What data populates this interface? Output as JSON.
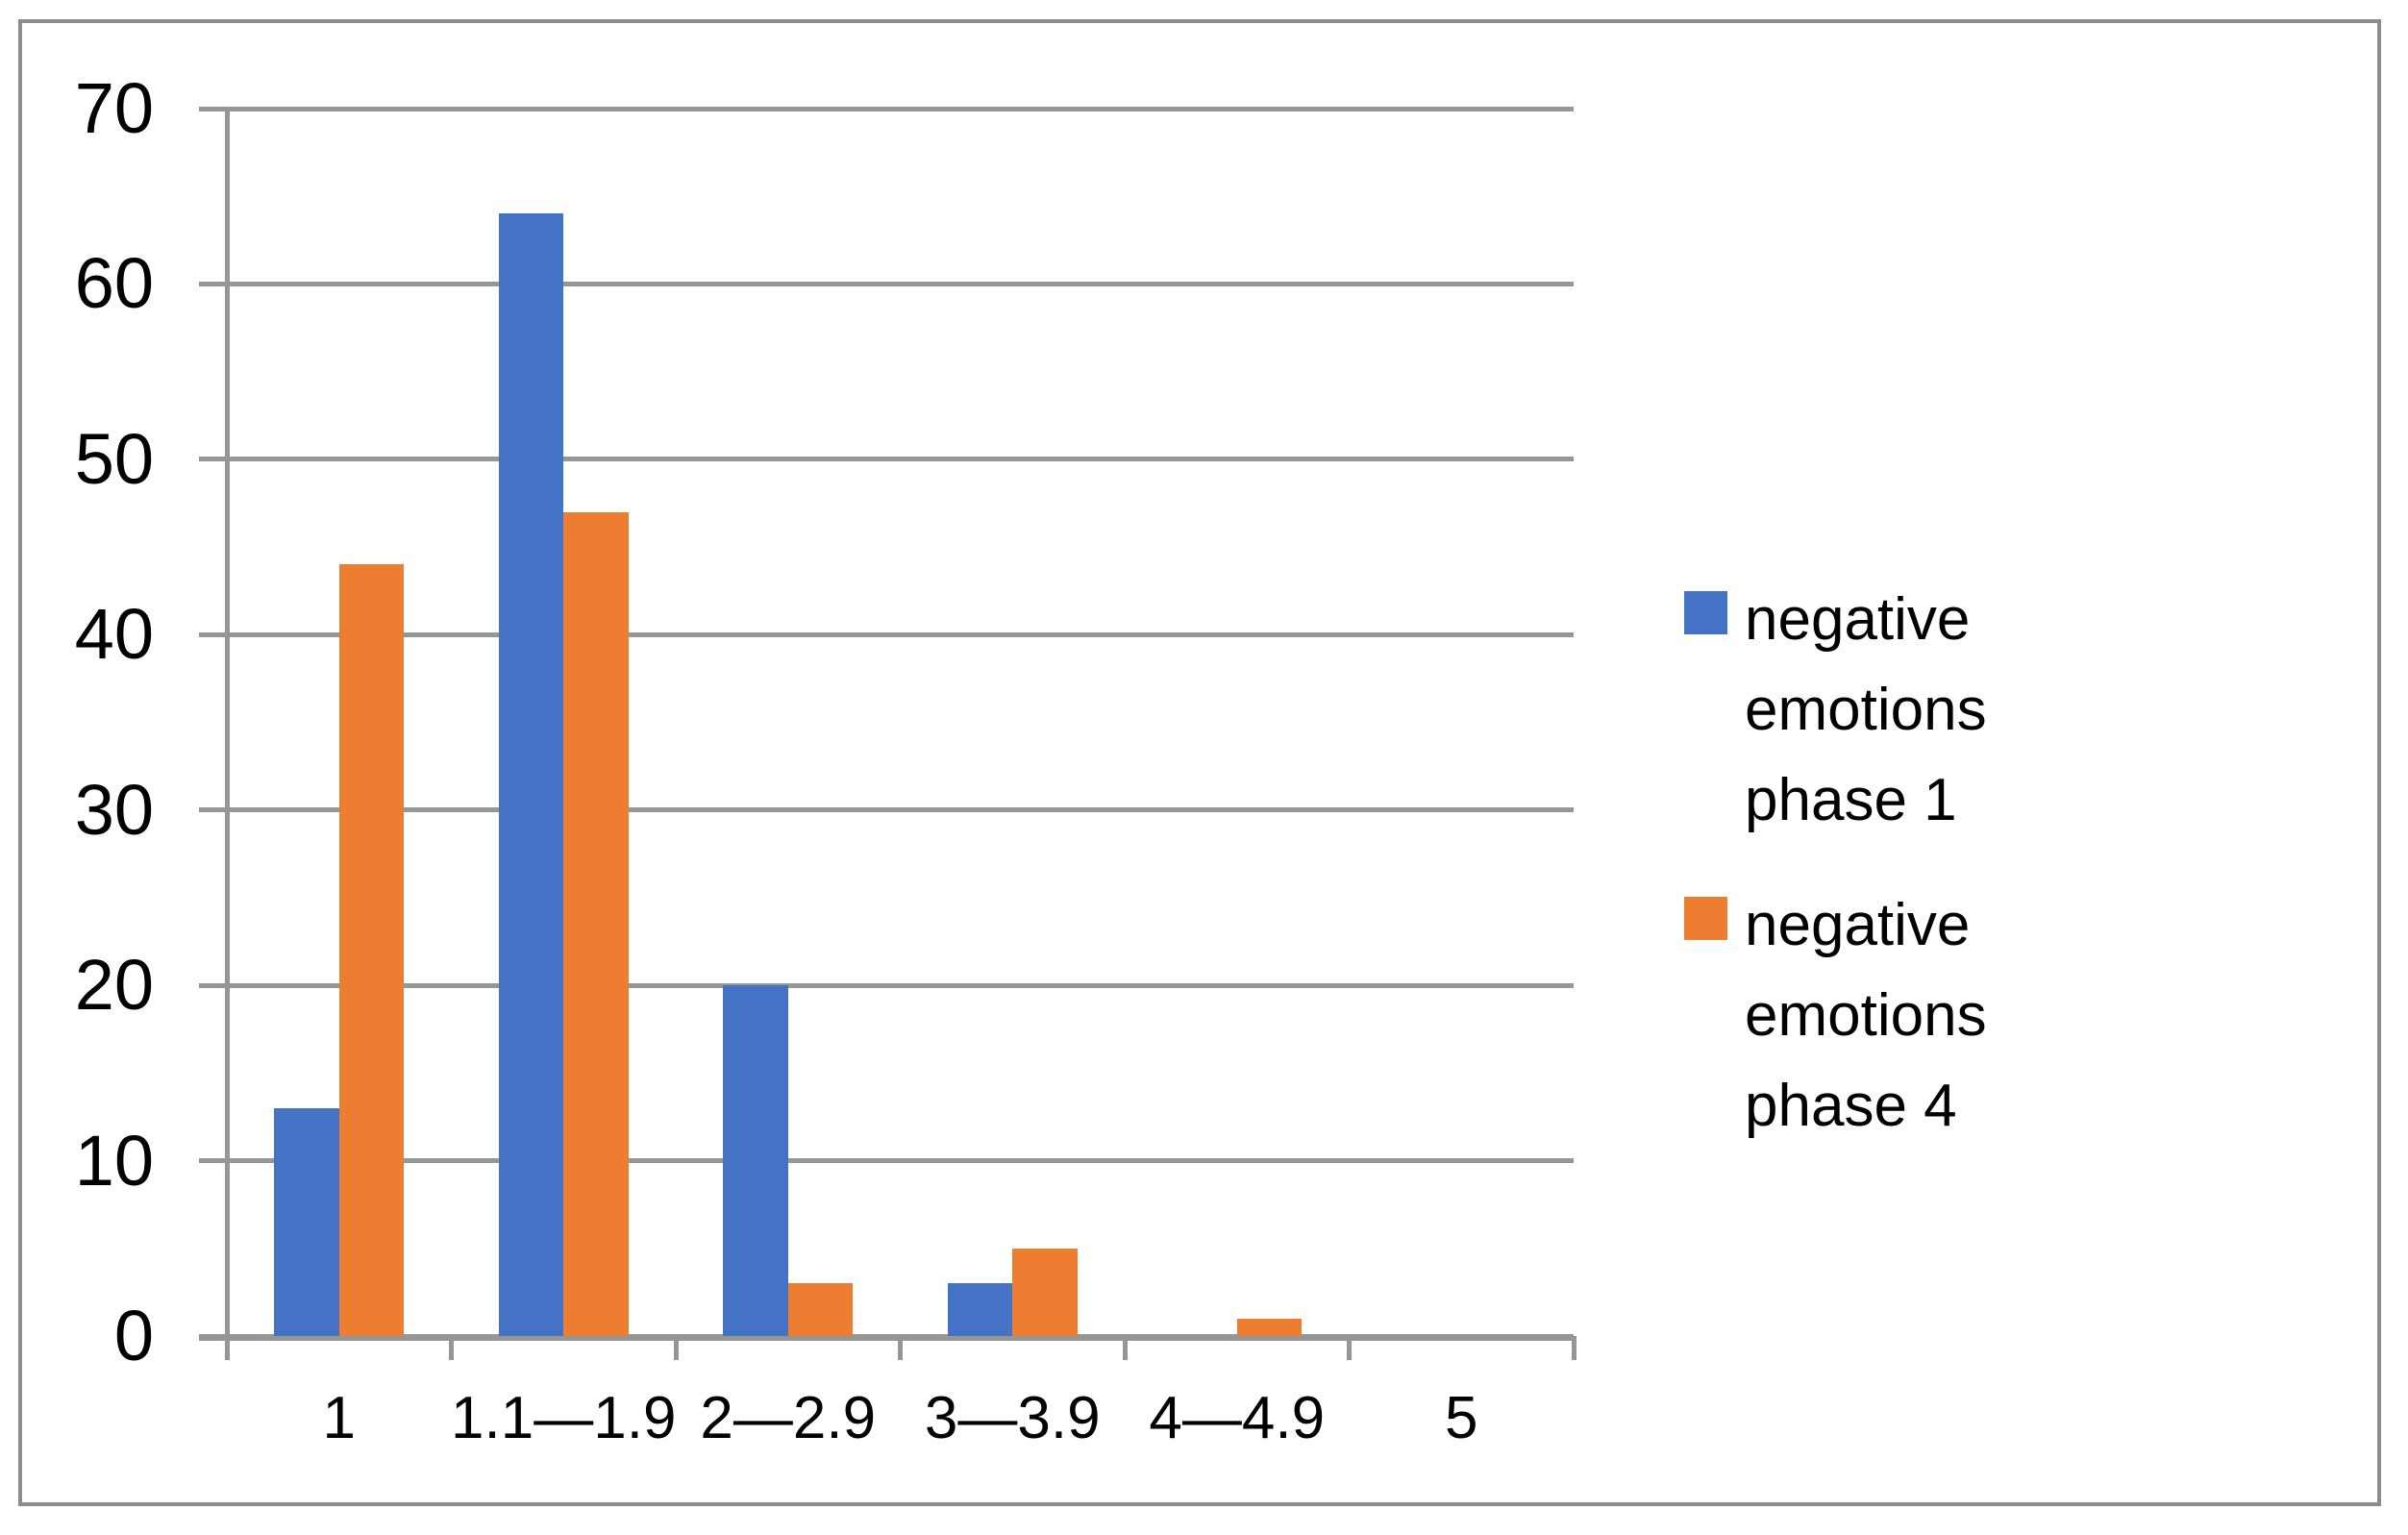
{
  "chart_data": {
    "type": "bar",
    "categories": [
      "1",
      "1.1—1.9",
      "2—2.9",
      "3—3.9",
      "4—4.9",
      "5"
    ],
    "series": [
      {
        "name": "negative emotions phase 1",
        "color": "#4472C4",
        "values": [
          13,
          64,
          20,
          3,
          0,
          0
        ]
      },
      {
        "name": "negative emotions phase 4",
        "color": "#ED7D31",
        "values": [
          44,
          47,
          3,
          5,
          1,
          0
        ]
      }
    ],
    "ylim": [
      0,
      70
    ],
    "yticks": [
      0,
      10,
      20,
      30,
      40,
      50,
      60,
      70
    ],
    "grid": true,
    "legend_position": "right",
    "title": "",
    "xlabel": "",
    "ylabel": ""
  },
  "colors": {
    "gridline": "#969696",
    "axis": "#969696",
    "frame_border": "#8C8C8C",
    "label_text": "#000000",
    "background": "#FFFFFF"
  }
}
